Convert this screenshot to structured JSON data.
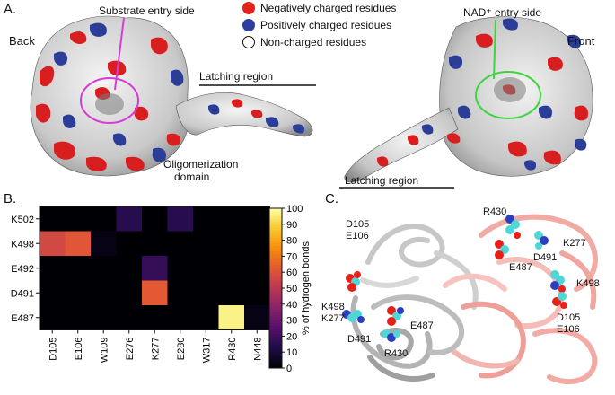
{
  "panels": {
    "a": "A.",
    "b": "B.",
    "c": "C."
  },
  "panel_a": {
    "back_label": "Back",
    "front_label": "Front",
    "substrate_entry": "Substrate entry side",
    "nad_entry": "NAD⁺ entry side",
    "latching_top": "Latching region",
    "latching_bottom": "Latching region",
    "oligomerization": [
      "Oligomerization",
      "domain"
    ],
    "legend": [
      {
        "label": "Negatively charged residues",
        "color": "#e2231a"
      },
      {
        "label": "Positively charged residues",
        "color": "#2a3f9e"
      },
      {
        "label": "Non-charged residues",
        "color": "#ffffff"
      }
    ],
    "colors": {
      "negative": "#d81e1e",
      "positive": "#2b3d97",
      "neutral": "#d2d2d2",
      "substrate_ring": "#d63cd6",
      "nad_ring": "#3cd63c"
    }
  },
  "chart_data": {
    "type": "heatmap",
    "title": "",
    "xlabel": "",
    "ylabel": "",
    "x_categories": [
      "D105",
      "E106",
      "W109",
      "E276",
      "K277",
      "E280",
      "W317",
      "R430",
      "N448"
    ],
    "y_categories": [
      "K502",
      "K498",
      "E492",
      "D491",
      "E487"
    ],
    "values": [
      [
        0,
        0,
        0,
        15,
        0,
        15,
        0,
        0,
        0
      ],
      [
        57,
        62,
        3,
        0,
        0,
        0,
        0,
        0,
        0
      ],
      [
        0,
        0,
        0,
        0,
        18,
        0,
        0,
        0,
        0
      ],
      [
        0,
        0,
        0,
        0,
        63,
        0,
        0,
        0,
        0
      ],
      [
        0,
        0,
        0,
        0,
        0,
        0,
        0,
        97,
        3
      ]
    ],
    "colorbar": {
      "label": "% of hydrogen bonds",
      "min": 0,
      "max": 100,
      "ticks": [
        0,
        10,
        20,
        30,
        40,
        50,
        60,
        70,
        80,
        90,
        100
      ]
    },
    "colormap": "inferno"
  },
  "panel_c": {
    "labels_left": [
      "D105",
      "E106",
      "K498",
      "K277",
      "E487",
      "D491",
      "R430"
    ],
    "labels_right": [
      "R430",
      "K277",
      "D491",
      "E487",
      "K498",
      "D105",
      "E106"
    ],
    "colors": {
      "chain_a": "#c8c8c8",
      "chain_b": "#f2b3ae",
      "atom_o": "#e8201a",
      "atom_c": "#4fd6d6",
      "atom_n": "#2b3fbf"
    }
  }
}
